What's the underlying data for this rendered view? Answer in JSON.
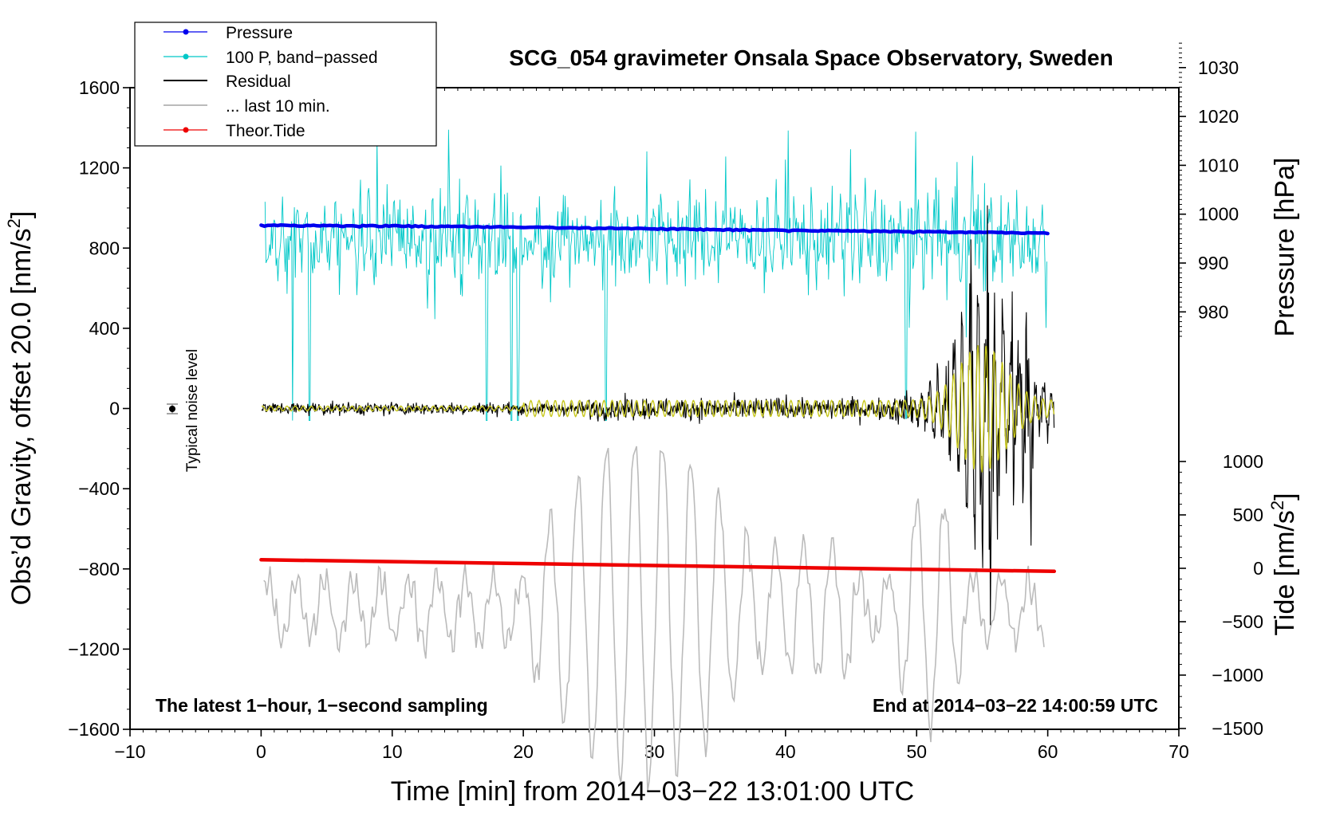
{
  "chart_data": {
    "type": "line",
    "title": "SCG_054 gravimeter Onsala Space Observatory, Sweden",
    "xlabel": "Time [min] from 2014−03−22 13:01:00 UTC",
    "ylabel_main": "Obs’d Gravity, offset 20.0 [nm/s",
    "ylabel_main_sup": "2",
    "ylabel_main_end": "]",
    "ylabel_pressure": "Pressure [hPa]",
    "ylabel_tide": "Tide [nm/s",
    "ylabel_tide_sup": "2",
    "ylabel_tide_end": "]",
    "xlim": [
      -10,
      70
    ],
    "ylim": [
      -1600,
      1600
    ],
    "x_ticks": [
      "−10",
      "0",
      "10",
      "20",
      "30",
      "40",
      "50",
      "60",
      "70"
    ],
    "y_ticks": [
      "−1600",
      "−1200",
      "−800",
      "−400",
      "0",
      "400",
      "800",
      "1200",
      "1600"
    ],
    "pressure_ticks": [
      "980",
      "990",
      "1000",
      "1010",
      "1020",
      "1030"
    ],
    "tide_ticks": [
      "−1500",
      "−1000",
      "−500",
      "0",
      "500",
      "1000"
    ],
    "annotation_left": "The latest 1−hour, 1−second sampling",
    "annotation_right": "End at 2014−03−22 14:00:59 UTC",
    "noise_label": "Typical noise level",
    "legend": [
      "Pressure",
      "100 P, band−passed",
      "Residual",
      "... last 10 min.",
      "Theor.Tide"
    ],
    "colors": {
      "pressure": "#0000ee",
      "bandpassed": "#00c8c8",
      "residual": "#000000",
      "last10": "#bbbbbb",
      "tide": "#ee0000",
      "yellow": "#c8c81e"
    },
    "series": [
      {
        "name": "Pressure",
        "units": "hPa",
        "x": [
          0,
          10,
          20,
          30,
          40,
          50,
          60
        ],
        "values": [
          997.8,
          997.7,
          997.4,
          997.1,
          996.8,
          996.5,
          996.2
        ]
      },
      {
        "name": "Theor.Tide",
        "units": "nm/s^2",
        "x": [
          0,
          10,
          20,
          30,
          40,
          50,
          60.5
        ],
        "values": [
          80,
          63,
          45,
          26,
          8,
          -10,
          -28
        ]
      },
      {
        "name": "100 P, band−passed",
        "x": [
          0,
          60
        ],
        "values": [
          850,
          850
        ]
      },
      {
        "name": "Residual",
        "x": [
          0,
          60
        ],
        "values": [
          0,
          0
        ]
      },
      {
        "name": "... last 10 min.",
        "x": [
          0,
          60
        ],
        "values": [
          -1000,
          -1000
        ]
      }
    ]
  }
}
